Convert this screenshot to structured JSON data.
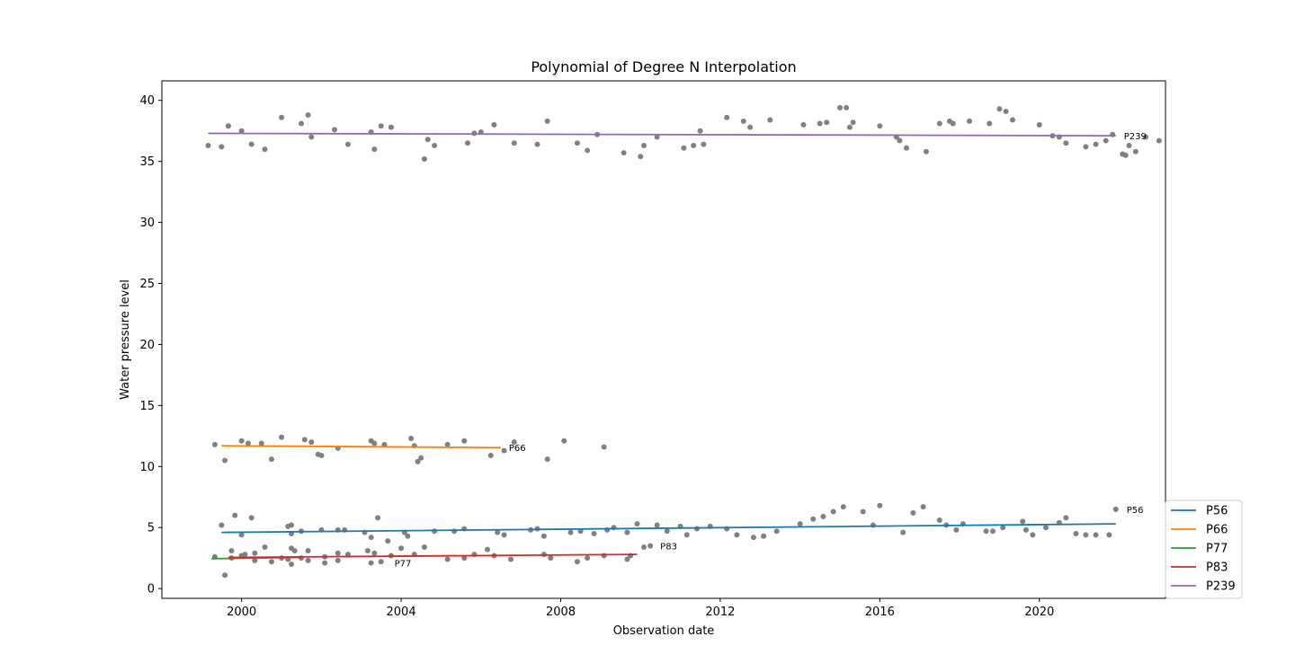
{
  "chart_data": {
    "type": "scatter",
    "title": "Polynomial of Degree N Interpolation",
    "xlabel": "Observation date",
    "ylabel": "Water pressure level",
    "xlim": [
      "1998-01-01",
      "2023-03-01"
    ],
    "ylim": [
      -0.8,
      41.6
    ],
    "x_ticks": [
      "2000-01-01",
      "2004-01-01",
      "2008-01-01",
      "2012-01-01",
      "2016-01-01",
      "2020-01-01"
    ],
    "x_tick_labels": [
      "2000",
      "2004",
      "2008",
      "2012",
      "2016",
      "2020"
    ],
    "y_ticks": [
      0,
      5,
      10,
      15,
      20,
      25,
      30,
      35,
      40
    ],
    "grid": false,
    "legend_position": "lower-right",
    "point_color": "#808080",
    "series": [
      {
        "name": "P56",
        "color": "#1f77b4",
        "fit": [
          [
            "1999-07-01",
            4.6
          ],
          [
            "2021-12-01",
            5.3
          ]
        ],
        "end_label": "P56",
        "points": [
          [
            "1999-07-01",
            5.2
          ],
          [
            "1999-11-01",
            6.0
          ],
          [
            "2000-01-01",
            4.4
          ],
          [
            "2000-04-01",
            5.8
          ],
          [
            "2001-03-01",
            5.1
          ],
          [
            "2001-04-01",
            5.2
          ],
          [
            "2001-04-01",
            4.5
          ],
          [
            "2001-07-01",
            4.7
          ],
          [
            "2002-01-01",
            4.8
          ],
          [
            "2002-06-01",
            4.8
          ],
          [
            "2002-08-01",
            4.8
          ],
          [
            "2003-02-01",
            4.6
          ],
          [
            "2003-04-01",
            4.2
          ],
          [
            "2003-06-01",
            5.8
          ],
          [
            "2003-09-01",
            3.9
          ],
          [
            "2004-02-01",
            4.6
          ],
          [
            "2004-03-01",
            4.3
          ],
          [
            "2004-11-01",
            4.7
          ],
          [
            "2005-05-01",
            4.7
          ],
          [
            "2005-08-01",
            4.9
          ],
          [
            "2006-06-01",
            4.6
          ],
          [
            "2006-08-01",
            4.4
          ],
          [
            "2007-04-01",
            4.8
          ],
          [
            "2007-06-01",
            4.9
          ],
          [
            "2007-08-01",
            4.3
          ],
          [
            "2008-04-01",
            4.6
          ],
          [
            "2008-07-01",
            4.7
          ],
          [
            "2008-11-01",
            4.5
          ],
          [
            "2009-03-01",
            4.8
          ],
          [
            "2009-05-01",
            5.0
          ],
          [
            "2009-09-01",
            4.6
          ],
          [
            "2009-12-01",
            5.3
          ],
          [
            "2010-06-01",
            5.2
          ],
          [
            "2010-09-01",
            4.7
          ],
          [
            "2011-01-01",
            5.1
          ],
          [
            "2011-03-01",
            4.4
          ],
          [
            "2011-06-01",
            4.9
          ],
          [
            "2011-10-01",
            5.1
          ],
          [
            "2012-03-01",
            4.9
          ],
          [
            "2012-06-01",
            4.4
          ],
          [
            "2012-11-01",
            4.2
          ],
          [
            "2013-02-01",
            4.3
          ],
          [
            "2013-06-01",
            4.7
          ],
          [
            "2014-01-01",
            5.3
          ],
          [
            "2014-05-01",
            5.7
          ],
          [
            "2014-08-01",
            5.9
          ],
          [
            "2014-11-01",
            6.3
          ],
          [
            "2015-02-01",
            6.7
          ],
          [
            "2015-08-01",
            6.3
          ],
          [
            "2015-11-01",
            5.2
          ],
          [
            "2016-01-01",
            6.8
          ],
          [
            "2016-08-01",
            4.6
          ],
          [
            "2016-11-01",
            6.2
          ],
          [
            "2017-02-01",
            6.7
          ],
          [
            "2017-07-01",
            5.6
          ],
          [
            "2017-09-01",
            5.2
          ],
          [
            "2017-12-01",
            4.8
          ],
          [
            "2018-02-01",
            5.3
          ],
          [
            "2018-09-01",
            4.7
          ],
          [
            "2018-11-01",
            4.7
          ],
          [
            "2019-02-01",
            5.0
          ],
          [
            "2019-08-01",
            5.5
          ],
          [
            "2019-09-01",
            4.8
          ],
          [
            "2019-11-01",
            4.4
          ],
          [
            "2020-03-01",
            5.0
          ],
          [
            "2020-07-01",
            5.4
          ],
          [
            "2020-09-01",
            5.8
          ],
          [
            "2020-12-01",
            4.5
          ],
          [
            "2021-03-01",
            4.4
          ],
          [
            "2021-06-01",
            4.4
          ],
          [
            "2021-10-01",
            4.4
          ],
          [
            "2021-12-01",
            6.5
          ]
        ]
      },
      {
        "name": "P66",
        "color": "#ff7f0e",
        "fit": [
          [
            "1999-07-01",
            11.7
          ],
          [
            "2006-07-01",
            11.55
          ]
        ],
        "end_label": "P66",
        "points": [
          [
            "1999-05-01",
            11.8
          ],
          [
            "1999-08-01",
            10.5
          ],
          [
            "2000-01-01",
            12.1
          ],
          [
            "2000-03-01",
            11.9
          ],
          [
            "2000-07-01",
            11.9
          ],
          [
            "2000-10-01",
            10.6
          ],
          [
            "2001-01-01",
            12.4
          ],
          [
            "2001-08-01",
            12.2
          ],
          [
            "2001-10-01",
            12.0
          ],
          [
            "2001-12-01",
            11.0
          ],
          [
            "2002-01-01",
            10.9
          ],
          [
            "2002-06-01",
            11.5
          ],
          [
            "2003-04-01",
            12.1
          ],
          [
            "2003-05-01",
            11.9
          ],
          [
            "2003-08-01",
            11.8
          ],
          [
            "2004-04-01",
            12.3
          ],
          [
            "2004-05-01",
            11.7
          ],
          [
            "2004-06-01",
            10.4
          ],
          [
            "2004-07-01",
            10.7
          ],
          [
            "2005-03-01",
            11.8
          ],
          [
            "2005-08-01",
            12.1
          ],
          [
            "2006-04-01",
            10.9
          ],
          [
            "2006-08-01",
            11.3
          ],
          [
            "2006-11-01",
            12.0
          ],
          [
            "2007-09-01",
            10.6
          ],
          [
            "2008-02-01",
            12.1
          ],
          [
            "2009-02-01",
            11.6
          ]
        ]
      },
      {
        "name": "P77",
        "color": "#2ca02c",
        "fit": [
          [
            "1999-04-01",
            2.45
          ],
          [
            "2001-07-01",
            2.55
          ]
        ],
        "end_label": "P77",
        "points": [
          [
            "1999-05-01",
            2.6
          ],
          [
            "1999-08-01",
            1.1
          ],
          [
            "1999-10-01",
            2.5
          ],
          [
            "2000-01-01",
            2.7
          ],
          [
            "2000-05-01",
            2.3
          ],
          [
            "2000-10-01",
            2.2
          ],
          [
            "2001-03-01",
            2.4
          ],
          [
            "2001-04-01",
            2.0
          ],
          [
            "2001-07-01",
            2.5
          ],
          [
            "2001-09-01",
            2.3
          ],
          [
            "2002-02-01",
            2.1
          ],
          [
            "2002-06-01",
            2.3
          ],
          [
            "2003-04-01",
            2.1
          ],
          [
            "2003-07-01",
            2.2
          ]
        ]
      },
      {
        "name": "P83",
        "color": "#d62728",
        "fit": [
          [
            "1999-09-01",
            2.55
          ],
          [
            "2009-12-01",
            2.8
          ]
        ],
        "end_label": "P83",
        "points": [
          [
            "1999-10-01",
            3.1
          ],
          [
            "2000-02-01",
            2.8
          ],
          [
            "2000-05-01",
            2.9
          ],
          [
            "2000-08-01",
            3.4
          ],
          [
            "2001-01-01",
            2.5
          ],
          [
            "2001-04-01",
            3.3
          ],
          [
            "2001-05-01",
            3.1
          ],
          [
            "2001-09-01",
            3.1
          ],
          [
            "2002-02-01",
            2.6
          ],
          [
            "2002-06-01",
            2.9
          ],
          [
            "2002-09-01",
            2.8
          ],
          [
            "2003-03-01",
            3.1
          ],
          [
            "2003-05-01",
            2.9
          ],
          [
            "2003-10-01",
            2.7
          ],
          [
            "2004-01-01",
            3.3
          ],
          [
            "2004-05-01",
            2.8
          ],
          [
            "2004-08-01",
            3.4
          ],
          [
            "2005-03-01",
            2.4
          ],
          [
            "2005-08-01",
            2.5
          ],
          [
            "2005-11-01",
            2.8
          ],
          [
            "2006-03-01",
            3.2
          ],
          [
            "2006-05-01",
            2.7
          ],
          [
            "2006-10-01",
            2.4
          ],
          [
            "2007-08-01",
            2.8
          ],
          [
            "2007-10-01",
            2.5
          ],
          [
            "2008-06-01",
            2.2
          ],
          [
            "2008-09-01",
            2.5
          ],
          [
            "2009-02-01",
            2.7
          ],
          [
            "2009-09-01",
            2.4
          ],
          [
            "2009-10-01",
            2.7
          ],
          [
            "2010-02-01",
            3.4
          ],
          [
            "2010-04-01",
            3.5
          ]
        ]
      },
      {
        "name": "P239",
        "color": "#9467bd",
        "fit": [
          [
            "1999-03-01",
            37.3
          ],
          [
            "2021-12-01",
            37.1
          ]
        ],
        "end_label": "P239",
        "points": [
          [
            "1999-03-01",
            36.3
          ],
          [
            "1999-07-01",
            36.2
          ],
          [
            "1999-09-01",
            37.9
          ],
          [
            "2000-01-01",
            37.5
          ],
          [
            "2000-04-01",
            36.4
          ],
          [
            "2000-08-01",
            36.0
          ],
          [
            "2001-01-01",
            38.6
          ],
          [
            "2001-07-01",
            38.1
          ],
          [
            "2001-09-01",
            38.8
          ],
          [
            "2001-10-01",
            37.0
          ],
          [
            "2002-05-01",
            37.6
          ],
          [
            "2002-09-01",
            36.4
          ],
          [
            "2003-04-01",
            37.4
          ],
          [
            "2003-05-01",
            36.0
          ],
          [
            "2003-07-01",
            37.9
          ],
          [
            "2003-10-01",
            37.8
          ],
          [
            "2004-08-01",
            35.2
          ],
          [
            "2004-09-01",
            36.8
          ],
          [
            "2004-11-01",
            36.3
          ],
          [
            "2005-09-01",
            36.5
          ],
          [
            "2005-11-01",
            37.3
          ],
          [
            "2006-01-01",
            37.4
          ],
          [
            "2006-05-01",
            38.0
          ],
          [
            "2006-11-01",
            36.5
          ],
          [
            "2007-06-01",
            36.4
          ],
          [
            "2007-09-01",
            38.3
          ],
          [
            "2008-06-01",
            36.5
          ],
          [
            "2008-09-01",
            35.9
          ],
          [
            "2008-12-01",
            37.2
          ],
          [
            "2009-08-01",
            35.7
          ],
          [
            "2010-01-01",
            35.4
          ],
          [
            "2010-02-01",
            36.3
          ],
          [
            "2010-06-01",
            37.0
          ],
          [
            "2011-02-01",
            36.1
          ],
          [
            "2011-05-01",
            36.3
          ],
          [
            "2011-07-01",
            37.5
          ],
          [
            "2011-08-01",
            36.4
          ],
          [
            "2012-03-01",
            38.6
          ],
          [
            "2012-08-01",
            38.3
          ],
          [
            "2012-10-01",
            37.8
          ],
          [
            "2013-04-01",
            38.4
          ],
          [
            "2014-02-01",
            38.0
          ],
          [
            "2014-07-01",
            38.1
          ],
          [
            "2014-09-01",
            38.2
          ],
          [
            "2015-01-01",
            39.4
          ],
          [
            "2015-03-01",
            39.4
          ],
          [
            "2015-04-01",
            37.8
          ],
          [
            "2015-05-01",
            38.2
          ],
          [
            "2016-01-01",
            37.9
          ],
          [
            "2016-06-01",
            37.0
          ],
          [
            "2016-07-01",
            36.7
          ],
          [
            "2016-09-01",
            36.1
          ],
          [
            "2017-03-01",
            35.8
          ],
          [
            "2017-07-01",
            38.1
          ],
          [
            "2017-10-01",
            38.3
          ],
          [
            "2017-11-01",
            38.1
          ],
          [
            "2018-04-01",
            38.3
          ],
          [
            "2018-10-01",
            38.1
          ],
          [
            "2019-01-01",
            39.3
          ],
          [
            "2019-03-01",
            39.1
          ],
          [
            "2019-05-01",
            38.4
          ],
          [
            "2020-01-01",
            38.0
          ],
          [
            "2020-05-01",
            37.1
          ],
          [
            "2020-07-01",
            37.0
          ],
          [
            "2020-09-01",
            36.5
          ],
          [
            "2021-03-01",
            36.2
          ],
          [
            "2021-06-01",
            36.4
          ],
          [
            "2021-09-01",
            36.7
          ],
          [
            "2021-11-01",
            37.2
          ],
          [
            "2022-02-01",
            35.6
          ],
          [
            "2022-03-01",
            35.5
          ],
          [
            "2022-04-01",
            36.3
          ],
          [
            "2022-06-01",
            35.8
          ],
          [
            "2022-09-01",
            37.0
          ],
          [
            "2023-01-01",
            36.7
          ]
        ]
      }
    ]
  }
}
